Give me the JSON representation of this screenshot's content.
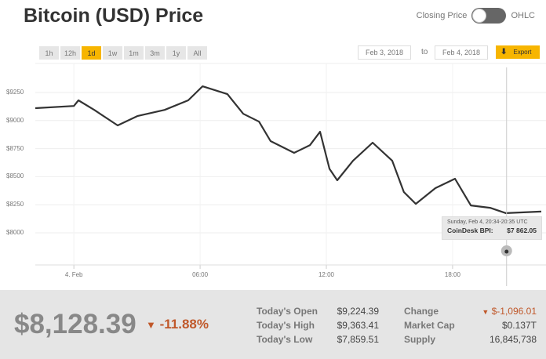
{
  "header": {
    "title": "Bitcoin (USD) Price",
    "toggle_left": "Closing Price",
    "toggle_right": "OHLC",
    "toggle_on": false
  },
  "ranges": [
    {
      "label": "1h"
    },
    {
      "label": "12h"
    },
    {
      "label": "1d",
      "active": true
    },
    {
      "label": "1w"
    },
    {
      "label": "1m"
    },
    {
      "label": "3m"
    },
    {
      "label": "1y"
    },
    {
      "label": "All"
    }
  ],
  "date_range": {
    "from": "Feb 3, 2018",
    "to_label": "to",
    "to": "Feb 4, 2018",
    "export_label": "Export"
  },
  "colors": {
    "accent": "#f7b500",
    "line": "#333333",
    "negative": "#c0582a"
  },
  "chart_data": {
    "type": "line",
    "y_ticks": [
      "$8000",
      "$8250",
      "$8500",
      "$8750",
      "$9000",
      "$9250"
    ],
    "y_tick_values": [
      8000,
      8250,
      8500,
      8750,
      9000,
      9250
    ],
    "x_ticks": [
      {
        "label": "4. Feb",
        "t": "2018-02-04T00:00"
      },
      {
        "label": "06:00",
        "t": "2018-02-04T06:00"
      },
      {
        "label": "12:00",
        "t": "2018-02-04T12:00"
      },
      {
        "label": "18:00",
        "t": "2018-02-04T18:00"
      }
    ],
    "x_range": [
      "2018-02-03T22:10",
      "2018-02-04T22:13"
    ],
    "ylim": [
      7800,
      9400
    ],
    "grid": true,
    "series": [
      {
        "points": [
          [
            "2018-02-03T22:10",
            9110
          ],
          [
            "2018-02-04T00:00",
            9130
          ],
          [
            "2018-02-04T00:13",
            9180
          ],
          [
            "2018-02-04T00:58",
            9095
          ],
          [
            "2018-02-04T02:05",
            8957
          ],
          [
            "2018-02-04T03:01",
            9040
          ],
          [
            "2018-02-04T04:19",
            9095
          ],
          [
            "2018-02-04T05:26",
            9180
          ],
          [
            "2018-02-04T06:07",
            9305
          ],
          [
            "2018-02-04T07:18",
            9235
          ],
          [
            "2018-02-04T08:03",
            9060
          ],
          [
            "2018-02-04T08:48",
            8990
          ],
          [
            "2018-02-04T09:21",
            8817
          ],
          [
            "2018-02-04T10:28",
            8712
          ],
          [
            "2018-02-04T11:13",
            8780
          ],
          [
            "2018-02-04T11:42",
            8900
          ],
          [
            "2018-02-04T12:09",
            8570
          ],
          [
            "2018-02-04T12:31",
            8468
          ],
          [
            "2018-02-04T13:16",
            8642
          ],
          [
            "2018-02-04T14:12",
            8803
          ],
          [
            "2018-02-04T15:08",
            8642
          ],
          [
            "2018-02-04T15:41",
            8363
          ],
          [
            "2018-02-04T16:15",
            8258
          ],
          [
            "2018-02-04T17:11",
            8398
          ],
          [
            "2018-02-04T18:07",
            8482
          ],
          [
            "2018-02-04T18:52",
            8244
          ],
          [
            "2018-02-04T19:47",
            8223
          ],
          [
            "2018-02-04T20:32",
            8175
          ],
          [
            "2018-02-04T22:13",
            8189
          ]
        ]
      }
    ],
    "tooltip": {
      "date": "Sunday, Feb 4, 20:34-20:35 UTC",
      "label": "CoinDesk BPI:",
      "value": "$7 862.05",
      "t": "2018-02-04T20:34"
    }
  },
  "summary": {
    "price": "$8,128.39",
    "change_pct": "-11.88%",
    "stats": [
      {
        "label": "Today's Open",
        "value": "$9,224.39"
      },
      {
        "label": "Today's High",
        "value": "$9,363.41"
      },
      {
        "label": "Today's Low",
        "value": "$7,859.51"
      }
    ],
    "stats2": [
      {
        "label": "Change",
        "value": "$-1,096.01"
      },
      {
        "label": "Market Cap",
        "value": "$0.137T"
      },
      {
        "label": "Supply",
        "value": "16,845,738"
      }
    ]
  }
}
